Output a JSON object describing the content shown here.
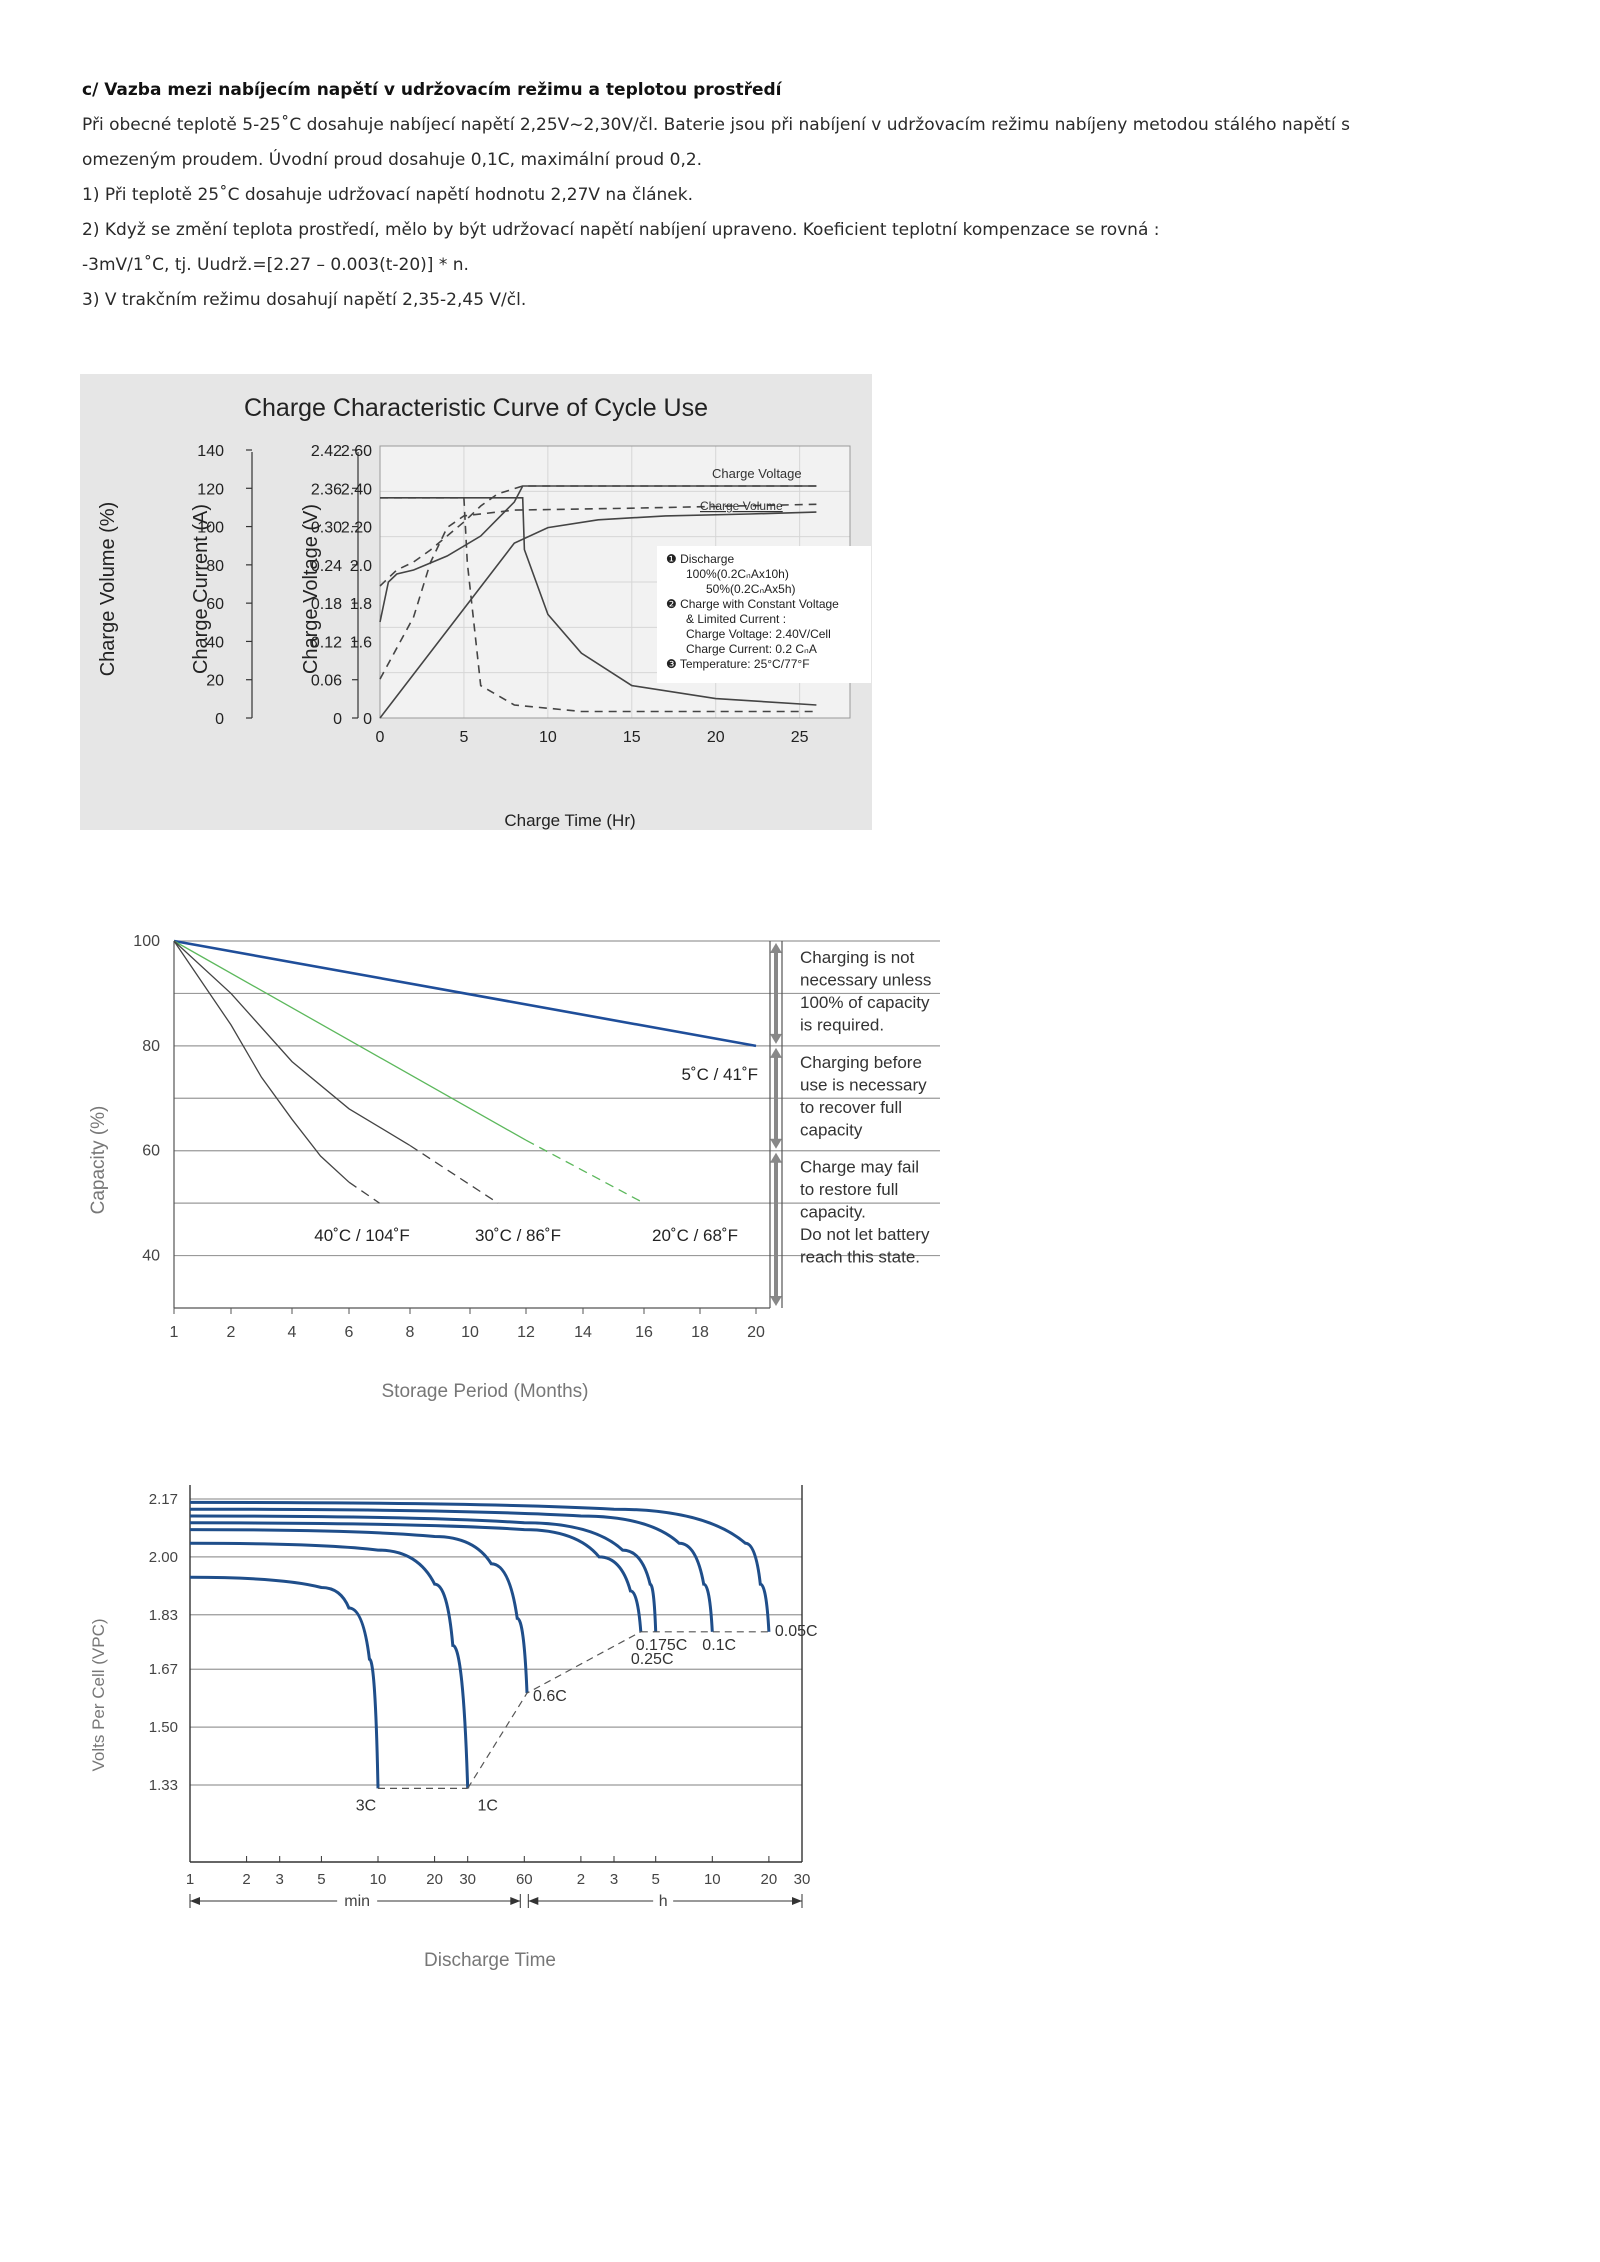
{
  "section": {
    "heading": "c/ Vazba mezi nabíjecím napětí v udržovacím režimu a teplotou prostředí",
    "lines": [
      "Při obecné teplotě 5-25˚C dosahuje nabíjecí napětí 2,25V~2,30V/čl. Baterie jsou při nabíjení v udržovacím režimu nabíjeny metodou stálého napětí s",
      "omezeným proudem. Úvodní proud dosahuje 0,1C, maximální proud 0,2.",
      "1) Při teplotě 25˚C dosahuje udržovací napětí hodnotu 2,27V na článek.",
      "2) Když se změní teplota prostředí, mělo by být udržovací napětí nabíjení upraveno. Koeficient teplotní kompenzace se rovná :",
      "-3mV/1˚C,  tj. Uudrž.=[2.27 – 0.003(t-20)] * n.",
      "3) V trakčním režimu dosahují napětí 2,35-2,45 V/čl."
    ]
  },
  "chart_data": [
    {
      "type": "line",
      "title": "Charge Characteristic Curve of Cycle Use",
      "xlabel": "Charge Time (Hr)",
      "xticks": [
        "0",
        "5",
        "10",
        "15",
        "20",
        "25"
      ],
      "xlim": [
        0,
        28
      ],
      "axes": [
        {
          "label": "Charge Volume (%)",
          "ticks": [
            "140",
            "120",
            "100",
            "80",
            "60",
            "40",
            "20",
            "0"
          ]
        },
        {
          "label": "Charge Current (A)",
          "ticks": [
            "2.42",
            "2.36",
            "0.30",
            "0.24",
            "0.18",
            "0.12",
            "0.06",
            "0"
          ]
        },
        {
          "label": "Charge Voltage (V)",
          "ticks": [
            "2.60",
            "2.40",
            "2.20",
            "2.0",
            "1.8",
            "1.6",
            "",
            "0"
          ]
        }
      ],
      "curve_labels": [
        "Charge Voltage",
        "Charge Volume"
      ],
      "legend_lines": [
        "❶ Discharge",
        "100%(0.2CₙAx10h)",
        "50%(0.2CₙAx5h)",
        "❷ Charge with  Constant Voltage",
        "& Limited Current :",
        "Charge Voltage: 2.40V/Cell",
        "Charge Current: 0.2  CₙA",
        "❸ Temperature: 25°C/77°F"
      ],
      "series": [
        {
          "style": "solid",
          "role": "charge-voltage",
          "x": [
            0,
            0.5,
            1,
            2,
            4,
            6,
            8,
            8.5,
            20,
            26
          ],
          "y": [
            1.72,
            1.92,
            1.96,
            1.98,
            2.05,
            2.15,
            2.32,
            2.4,
            2.4,
            2.4
          ]
        },
        {
          "style": "dashed",
          "role": "charge-voltage",
          "x": [
            0,
            1,
            2,
            3,
            4,
            5,
            6,
            7,
            8.5,
            20,
            26
          ],
          "y": [
            1.9,
            1.98,
            2.02,
            2.08,
            2.15,
            2.22,
            2.3,
            2.36,
            2.4,
            2.4,
            2.4
          ]
        },
        {
          "style": "solid",
          "role": "charge-volume",
          "x": [
            0,
            4,
            8,
            10,
            13,
            17,
            22,
            26
          ],
          "y": [
            0,
            45,
            90,
            98,
            102,
            104,
            105,
            106
          ]
        },
        {
          "style": "dashed",
          "role": "charge-volume",
          "x": [
            0,
            2,
            3,
            4,
            5,
            8,
            15,
            26
          ],
          "y": [
            20,
            52,
            80,
            98,
            104,
            107,
            108,
            110
          ]
        },
        {
          "style": "solid",
          "role": "charge-current",
          "x": [
            0,
            8.5,
            8.6,
            10,
            12,
            15,
            20,
            26
          ],
          "y": [
            0.34,
            0.34,
            0.26,
            0.16,
            0.1,
            0.05,
            0.03,
            0.02
          ]
        },
        {
          "style": "dashed",
          "role": "charge-current",
          "x": [
            0,
            5,
            5.2,
            6,
            8,
            12,
            20,
            26
          ],
          "y": [
            0.34,
            0.34,
            0.24,
            0.05,
            0.02,
            0.01,
            0.01,
            0.01
          ]
        }
      ]
    },
    {
      "type": "line",
      "title": "",
      "xlabel": "Storage Period (Months)",
      "ylabel": "Capacity (%)",
      "xticks": [
        "1",
        "2",
        "4",
        "6",
        "8",
        "10",
        "12",
        "14",
        "16",
        "18",
        "20"
      ],
      "yticks": [
        "100",
        "80",
        "60",
        "40"
      ],
      "xlim": [
        1,
        20
      ],
      "ylim": [
        30,
        100
      ],
      "series": [
        {
          "name": "5˚C / 41˚F",
          "color": "#1f4e9a",
          "x": [
            1,
            20
          ],
          "y": [
            100,
            80
          ]
        },
        {
          "name": "20˚C / 68˚F",
          "color": "#5cb85c",
          "x": [
            1,
            12,
            16
          ],
          "y": [
            100,
            62,
            50
          ]
        },
        {
          "name": "30˚C / 86˚F",
          "color": "#444444",
          "x": [
            1,
            2,
            4,
            6,
            8,
            11
          ],
          "y": [
            100,
            90,
            77,
            68,
            61,
            50
          ]
        },
        {
          "name": "40˚C / 104˚F",
          "color": "#444444",
          "x": [
            1,
            2,
            3,
            4,
            5,
            6,
            7
          ],
          "y": [
            100,
            84,
            74,
            66,
            59,
            54,
            50
          ]
        }
      ],
      "zones": [
        "Charging is not\nnecessary unless\n100% of capacity\nis required.",
        "Charging before\nuse is necessary\nto recover full\ncapacity",
        "Charge may fail\nto restore full\ncapacity.\nDo not let battery\nreach this state."
      ]
    },
    {
      "type": "line",
      "title": "",
      "xlabel": "Discharge Time",
      "ylabel": "Volts Per Cell (VPC)",
      "xticks": [
        "1",
        "2",
        "3",
        "5",
        "10",
        "20",
        "30",
        "60",
        "2",
        "3",
        "5",
        "10",
        "20",
        "30"
      ],
      "xunits": [
        "min",
        "h"
      ],
      "yticks": [
        "2.17",
        "2.00",
        "1.83",
        "1.67",
        "1.50",
        "1.33"
      ],
      "series": [
        {
          "name": "3C",
          "x_min": [
            1,
            5,
            7,
            9,
            10
          ],
          "y": [
            1.94,
            1.91,
            1.85,
            1.7,
            1.32
          ]
        },
        {
          "name": "1C",
          "x_min": [
            1,
            10,
            20,
            25,
            30
          ],
          "y": [
            2.04,
            2.02,
            1.92,
            1.74,
            1.32
          ]
        },
        {
          "name": "0.6C",
          "x_min": [
            1,
            20,
            40,
            55,
            62
          ],
          "y": [
            2.08,
            2.06,
            1.98,
            1.82,
            1.6
          ]
        },
        {
          "name": "0.25C",
          "x_min": [
            1,
            60,
            150,
            220,
            250
          ],
          "y": [
            2.1,
            2.08,
            2.0,
            1.9,
            1.78
          ]
        },
        {
          "name": "0.175C",
          "x_min": [
            1,
            60,
            200,
            280,
            300
          ],
          "y": [
            2.12,
            2.1,
            2.02,
            1.92,
            1.78
          ]
        },
        {
          "name": "0.1C",
          "x_min": [
            1,
            120,
            400,
            540,
            600
          ],
          "y": [
            2.14,
            2.12,
            2.04,
            1.92,
            1.78
          ]
        },
        {
          "name": "0.05C",
          "x_min": [
            1,
            180,
            900,
            1080,
            1200
          ],
          "y": [
            2.16,
            2.14,
            2.04,
            1.92,
            1.78
          ]
        }
      ]
    }
  ]
}
